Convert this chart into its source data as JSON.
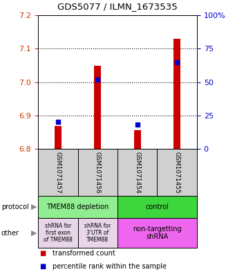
{
  "title": "GDS5077 / ILMN_1673535",
  "samples": [
    "GSM1071457",
    "GSM1071456",
    "GSM1071454",
    "GSM1071455"
  ],
  "transformed_counts": [
    6.868,
    7.048,
    6.855,
    7.13
  ],
  "percentile_ranks_pct": [
    20,
    52,
    18,
    65
  ],
  "ylim": [
    6.8,
    7.2
  ],
  "yticks_left": [
    6.8,
    6.9,
    7.0,
    7.1,
    7.2
  ],
  "yticks_right_pct": [
    0,
    25,
    50,
    75,
    100
  ],
  "bar_bottom": 6.8,
  "bar_color": "#cc0000",
  "dot_color": "#0000cc",
  "axis_color_left": "#cc3300",
  "axis_color_right": "#0000cc",
  "protocol_colors": [
    "#90ee90",
    "#3dd63d"
  ],
  "other_colors_left": "#e8d5e8",
  "other_color_right": "#ee66ee",
  "sample_box_color": "#d0d0d0",
  "legend_red": "transformed count",
  "legend_blue": "percentile rank within the sample"
}
